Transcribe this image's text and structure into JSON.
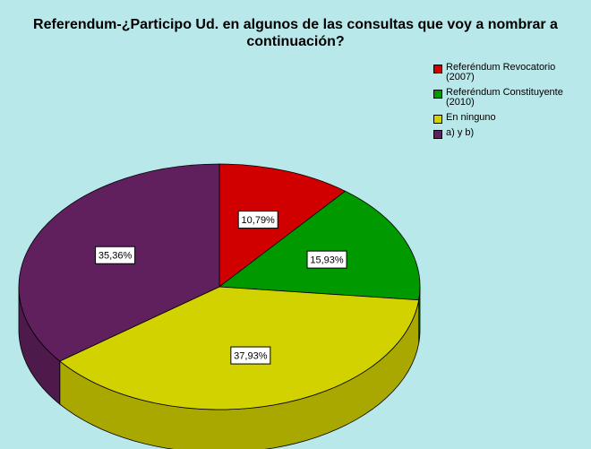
{
  "chart_data": {
    "type": "pie",
    "title": "Referendum-¿Participo Ud. en algunos de las consultas que voy a nombrar a continuación?",
    "title_lines": [
      "Referendum-¿Participo Ud. en algunos de las consultas que voy a nombrar a",
      "continuación?"
    ],
    "style": "3d",
    "legend_position": "top-right",
    "categories": [
      "Referéndum Revocatorio (2007)",
      "Referéndum Constituyente (2010)",
      "En ninguno",
      "a) y b)"
    ],
    "legend_lines": [
      [
        "Referéndum Revocatorio",
        "(2007)"
      ],
      [
        "Referéndum Constituyente",
        "(2010)"
      ],
      [
        "En ninguno"
      ],
      [
        "a) y b)"
      ]
    ],
    "values": [
      10.79,
      15.93,
      37.93,
      35.36
    ],
    "data_labels": [
      "10,79%",
      "15,93%",
      "37,93%",
      "35,36%"
    ],
    "colors": [
      "#d00000",
      "#009a00",
      "#d2d200",
      "#60205e"
    ]
  }
}
